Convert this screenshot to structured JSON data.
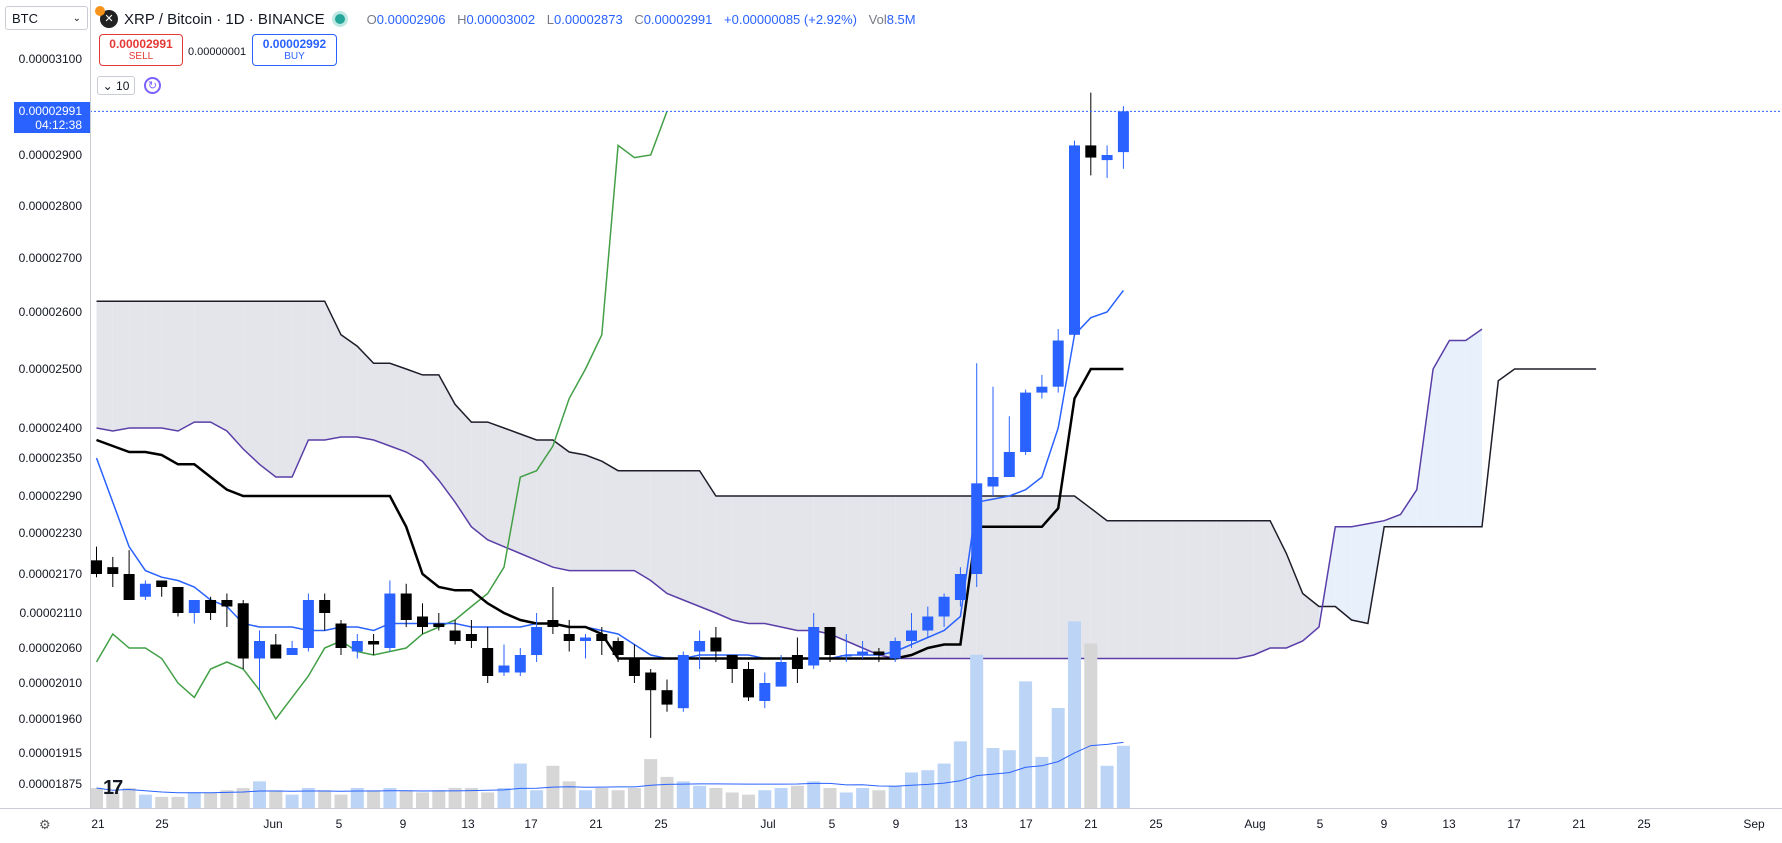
{
  "symbol_select": {
    "value": "BTC"
  },
  "legend": {
    "title": "XRP / Bitcoin · 1D · BINANCE",
    "open_k": "O",
    "open": "0.00002906",
    "high_k": "H",
    "high": "0.00003002",
    "low_k": "L",
    "low": "0.00002873",
    "close_k": "C",
    "close": "0.00002991",
    "change": "+0.00000085 (+2.92%)",
    "vol_k": "Vol",
    "vol": "8.5M"
  },
  "trade": {
    "sell_price": "0.00002991",
    "sell_label": "SELL",
    "spread": "0.00000001",
    "buy_price": "0.00002992",
    "buy_label": "BUY"
  },
  "interval": {
    "value": "10"
  },
  "price_tag": {
    "price": "0.00002991",
    "countdown": "04:12:38"
  },
  "colors": {
    "up": "#2962ff",
    "down": "#000000",
    "tenkan": "#2962ff",
    "kijun": "#000000",
    "chikou": "#43a047",
    "senkou_a": "#5a3fa8",
    "senkou_b": "#1e1e2a",
    "cloud_bear": "#e4e5ea",
    "cloud_bull": "#e8f0fb",
    "vol_up": "#bcd5f7",
    "vol_down": "#d6d6d6"
  },
  "chart_data": {
    "type": "candlestick",
    "y_axis_labels": [
      "0.00003100",
      "0.00002900",
      "0.00002800",
      "0.00002700",
      "0.00002600",
      "0.00002500",
      "0.00002400",
      "0.00002350",
      "0.00002290",
      "0.00002230",
      "0.00002170",
      "0.00002110",
      "0.00002060",
      "0.00002010",
      "0.00001960",
      "0.00001915",
      "0.00001875"
    ],
    "x_axis_labels": [
      "21",
      "25",
      "Jun",
      "5",
      "9",
      "13",
      "17",
      "21",
      "25",
      "Jul",
      "5",
      "9",
      "13",
      "17",
      "21",
      "25",
      "Aug",
      "5",
      "9",
      "13",
      "17",
      "21",
      "25",
      "Sep"
    ],
    "ohlc": [
      [
        2.19e-05,
        2.21e-05,
        2.165e-05,
        2.17e-05
      ],
      [
        2.18e-05,
        2.195e-05,
        2.15e-05,
        2.17e-05
      ],
      [
        2.17e-05,
        2.205e-05,
        2.13e-05,
        2.13e-05
      ],
      [
        2.135e-05,
        2.16e-05,
        2.13e-05,
        2.155e-05
      ],
      [
        2.16e-05,
        2.16e-05,
        2.135e-05,
        2.15e-05
      ],
      [
        2.15e-05,
        2.15e-05,
        2.105e-05,
        2.11e-05
      ],
      [
        2.11e-05,
        2.13e-05,
        2.095e-05,
        2.13e-05
      ],
      [
        2.13e-05,
        2.135e-05,
        2.1e-05,
        2.11e-05
      ],
      [
        2.13e-05,
        2.14e-05,
        2.09e-05,
        2.12e-05
      ],
      [
        2.125e-05,
        2.13e-05,
        2.03e-05,
        2.045e-05
      ],
      [
        2.045e-05,
        2.085e-05,
        2e-05,
        2.07e-05
      ],
      [
        2.065e-05,
        2.08e-05,
        2.045e-05,
        2.045e-05
      ],
      [
        2.05e-05,
        2.07e-05,
        2.05e-05,
        2.06e-05
      ],
      [
        2.06e-05,
        2.14e-05,
        2.055e-05,
        2.13e-05
      ],
      [
        2.13e-05,
        2.14e-05,
        2.085e-05,
        2.11e-05
      ],
      [
        2.095e-05,
        2.1e-05,
        2.05e-05,
        2.06e-05
      ],
      [
        2.055e-05,
        2.08e-05,
        2.045e-05,
        2.07e-05
      ],
      [
        2.07e-05,
        2.08e-05,
        2.05e-05,
        2.065e-05
      ],
      [
        2.06e-05,
        2.16e-05,
        2.055e-05,
        2.14e-05
      ],
      [
        2.14e-05,
        2.155e-05,
        2.09e-05,
        2.1e-05
      ],
      [
        2.105e-05,
        2.125e-05,
        2.08e-05,
        2.09e-05
      ],
      [
        2.095e-05,
        2.11e-05,
        2.085e-05,
        2.09e-05
      ],
      [
        2.085e-05,
        2.1e-05,
        2.065e-05,
        2.07e-05
      ],
      [
        2.08e-05,
        2.1e-05,
        2.06e-05,
        2.07e-05
      ],
      [
        2.06e-05,
        2.09e-05,
        2.01e-05,
        2.02e-05
      ],
      [
        2.025e-05,
        2.065e-05,
        2.02e-05,
        2.035e-05
      ],
      [
        2.025e-05,
        2.06e-05,
        2.02e-05,
        2.05e-05
      ],
      [
        2.05e-05,
        2.11e-05,
        2.04e-05,
        2.09e-05
      ],
      [
        2.1e-05,
        2.15e-05,
        2.08e-05,
        2.09e-05
      ],
      [
        2.08e-05,
        2.1e-05,
        2.055e-05,
        2.07e-05
      ],
      [
        2.07e-05,
        2.08e-05,
        2.045e-05,
        2.075e-05
      ],
      [
        2.08e-05,
        2.09e-05,
        2.05e-05,
        2.07e-05
      ],
      [
        2.07e-05,
        2.075e-05,
        2.04e-05,
        2.05e-05
      ],
      [
        2.045e-05,
        2.065e-05,
        2.01e-05,
        2.02e-05
      ],
      [
        2.025e-05,
        2.03e-05,
        1.935e-05,
        2e-05
      ],
      [
        2e-05,
        2.015e-05,
        1.97e-05,
        1.98e-05
      ],
      [
        1.975e-05,
        2.055e-05,
        1.97e-05,
        2.05e-05
      ],
      [
        2.055e-05,
        2.085e-05,
        2.03e-05,
        2.07e-05
      ],
      [
        2.075e-05,
        2.09e-05,
        2.04e-05,
        2.055e-05
      ],
      [
        2.05e-05,
        2.05e-05,
        2.01e-05,
        2.03e-05
      ],
      [
        2.03e-05,
        2.04e-05,
        1.985e-05,
        1.99e-05
      ],
      [
        1.985e-05,
        2.025e-05,
        1.975e-05,
        2.01e-05
      ],
      [
        2.005e-05,
        2.05e-05,
        2.005e-05,
        2.04e-05
      ],
      [
        2.05e-05,
        2.075e-05,
        2.01e-05,
        2.03e-05
      ],
      [
        2.035e-05,
        2.11e-05,
        2.03e-05,
        2.09e-05
      ],
      [
        2.09e-05,
        2.09e-05,
        2.04e-05,
        2.05e-05
      ],
      [
        2.05e-05,
        2.08e-05,
        2.04e-05,
        2.05e-05
      ],
      [
        2.05e-05,
        2.07e-05,
        2.045e-05,
        2.055e-05
      ],
      [
        2.055e-05,
        2.06e-05,
        2.04e-05,
        2.05e-05
      ],
      [
        2.045e-05,
        2.075e-05,
        2.04e-05,
        2.07e-05
      ],
      [
        2.07e-05,
        2.11e-05,
        2.06e-05,
        2.085e-05
      ],
      [
        2.085e-05,
        2.12e-05,
        2.075e-05,
        2.105e-05
      ],
      [
        2.105e-05,
        2.14e-05,
        2.09e-05,
        2.135e-05
      ],
      [
        2.13e-05,
        2.18e-05,
        2.12e-05,
        2.17e-05
      ],
      [
        2.17e-05,
        2.51e-05,
        2.15e-05,
        2.31e-05
      ],
      [
        2.305e-05,
        2.47e-05,
        2.29e-05,
        2.32e-05
      ],
      [
        2.32e-05,
        2.42e-05,
        2.32e-05,
        2.36e-05
      ],
      [
        2.36e-05,
        2.465e-05,
        2.355e-05,
        2.46e-05
      ],
      [
        2.46e-05,
        2.49e-05,
        2.45e-05,
        2.47e-05
      ],
      [
        2.47e-05,
        2.57e-05,
        2.46e-05,
        2.55e-05
      ],
      [
        2.56e-05,
        2.93e-05,
        2.56e-05,
        2.92e-05
      ],
      [
        2.92e-05,
        3.03e-05,
        2.86e-05,
        2.895e-05
      ],
      [
        2.89e-05,
        2.92e-05,
        2.855e-05,
        2.9e-05
      ],
      [
        2.906e-05,
        3.002e-05,
        2.873e-05,
        2.991e-05
      ]
    ],
    "volume": [
      9,
      7,
      9,
      6,
      5,
      5,
      7,
      7,
      8,
      9,
      12,
      8,
      6,
      9,
      8,
      6,
      9,
      8,
      9,
      8,
      7,
      8,
      9,
      9,
      7,
      9,
      20,
      8,
      19,
      12,
      8,
      9,
      8,
      9,
      22,
      14,
      12,
      10,
      9,
      7,
      6,
      8,
      9,
      10,
      12,
      9,
      7,
      9,
      8,
      10,
      16,
      17,
      20,
      30,
      69,
      27,
      26,
      57,
      23,
      45,
      84,
      74,
      19,
      28
    ],
    "tenkan": [
      2.35e-05,
      2.28e-05,
      2.21e-05,
      2.175e-05,
      2.165e-05,
      2.16e-05,
      2.15e-05,
      2.13e-05,
      2.12e-05,
      2.095e-05,
      2.09e-05,
      2.09e-05,
      2.09e-05,
      2.085e-05,
      2.085e-05,
      2.09e-05,
      2.09e-05,
      2.085e-05,
      2.095e-05,
      2.095e-05,
      2.095e-05,
      2.095e-05,
      2.095e-05,
      2.09e-05,
      2.09e-05,
      2.09e-05,
      2.09e-05,
      2.095e-05,
      2.095e-05,
      2.09e-05,
      2.09e-05,
      2.085e-05,
      2.08e-05,
      2.065e-05,
      2.05e-05,
      2.045e-05,
      2.045e-05,
      2.05e-05,
      2.05e-05,
      2.05e-05,
      2.05e-05,
      2.045e-05,
      2.045e-05,
      2.045e-05,
      2.045e-05,
      2.045e-05,
      2.05e-05,
      2.05e-05,
      2.05e-05,
      2.055e-05,
      2.065e-05,
      2.075e-05,
      2.085e-05,
      2.105e-05,
      2.28e-05,
      2.285e-05,
      2.29e-05,
      2.3e-05,
      2.32e-05,
      2.4e-05,
      2.56e-05,
      2.59e-05,
      2.6e-05,
      2.64e-05
    ],
    "kijun": [
      2.38e-05,
      2.37e-05,
      2.36e-05,
      2.36e-05,
      2.355e-05,
      2.34e-05,
      2.34e-05,
      2.32e-05,
      2.3e-05,
      2.29e-05,
      2.29e-05,
      2.29e-05,
      2.29e-05,
      2.29e-05,
      2.29e-05,
      2.29e-05,
      2.29e-05,
      2.29e-05,
      2.29e-05,
      2.24e-05,
      2.17e-05,
      2.15e-05,
      2.145e-05,
      2.145e-05,
      2.125e-05,
      2.11e-05,
      2.1e-05,
      2.095e-05,
      2.095e-05,
      2.09e-05,
      2.09e-05,
      2.08e-05,
      2.045e-05,
      2.045e-05,
      2.045e-05,
      2.045e-05,
      2.045e-05,
      2.045e-05,
      2.045e-05,
      2.045e-05,
      2.045e-05,
      2.045e-05,
      2.045e-05,
      2.045e-05,
      2.045e-05,
      2.045e-05,
      2.045e-05,
      2.045e-05,
      2.045e-05,
      2.045e-05,
      2.05e-05,
      2.06e-05,
      2.065e-05,
      2.065e-05,
      2.24e-05,
      2.24e-05,
      2.24e-05,
      2.24e-05,
      2.24e-05,
      2.27e-05,
      2.45e-05,
      2.5e-05,
      2.5e-05,
      2.5e-05
    ],
    "chikou": [
      2.04e-05,
      2.08e-05,
      2.06e-05,
      2.06e-05,
      2.045e-05,
      2.01e-05,
      1.99e-05,
      2.03e-05,
      2.04e-05,
      2.03e-05,
      2e-05,
      1.96e-05,
      1.99e-05,
      2.02e-05,
      2.06e-05,
      2.07e-05,
      2.055e-05,
      2.05e-05,
      2.055e-05,
      2.06e-05,
      2.08e-05,
      2.09e-05,
      2.1e-05,
      2.12e-05,
      2.14e-05,
      2.18e-05,
      2.32e-05,
      2.33e-05,
      2.37e-05,
      2.45e-05,
      2.5e-05,
      2.56e-05,
      2.92e-05,
      2.895e-05,
      2.9e-05,
      2.991e-05
    ],
    "senkou_a": [
      2.4e-05,
      2.395e-05,
      2.4e-05,
      2.4e-05,
      2.4e-05,
      2.395e-05,
      2.41e-05,
      2.41e-05,
      2.395e-05,
      2.365e-05,
      2.34e-05,
      2.32e-05,
      2.32e-05,
      2.38e-05,
      2.38e-05,
      2.385e-05,
      2.385e-05,
      2.38e-05,
      2.37e-05,
      2.36e-05,
      2.345e-05,
      2.315e-05,
      2.28e-05,
      2.24e-05,
      2.22e-05,
      2.21e-05,
      2.2e-05,
      2.19e-05,
      2.18e-05,
      2.175e-05,
      2.175e-05,
      2.175e-05,
      2.175e-05,
      2.175e-05,
      2.16e-05,
      2.14e-05,
      2.13e-05,
      2.12e-05,
      2.11e-05,
      2.1e-05,
      2.095e-05,
      2.095e-05,
      2.09e-05,
      2.085e-05,
      2.085e-05,
      2.08e-05,
      2.07e-05,
      2.06e-05,
      2.05e-05,
      2.045e-05,
      2.045e-05,
      2.045e-05,
      2.045e-05,
      2.045e-05,
      2.045e-05,
      2.045e-05,
      2.045e-05,
      2.045e-05,
      2.045e-05,
      2.045e-05,
      2.045e-05,
      2.045e-05,
      2.045e-05,
      2.045e-05,
      2.045e-05,
      2.045e-05,
      2.045e-05,
      2.045e-05,
      2.045e-05,
      2.045e-05,
      2.045e-05,
      2.05e-05,
      2.06e-05,
      2.06e-05,
      2.07e-05,
      2.09e-05,
      2.24e-05,
      2.24e-05,
      2.245e-05,
      2.25e-05,
      2.26e-05,
      2.3e-05,
      2.5e-05,
      2.55e-05,
      2.55e-05,
      2.57e-05
    ],
    "senkou_b": [
      2.62e-05,
      2.62e-05,
      2.62e-05,
      2.62e-05,
      2.62e-05,
      2.62e-05,
      2.62e-05,
      2.62e-05,
      2.62e-05,
      2.62e-05,
      2.62e-05,
      2.62e-05,
      2.62e-05,
      2.62e-05,
      2.62e-05,
      2.56e-05,
      2.54e-05,
      2.51e-05,
      2.51e-05,
      2.5e-05,
      2.49e-05,
      2.49e-05,
      2.44e-05,
      2.41e-05,
      2.41e-05,
      2.4e-05,
      2.39e-05,
      2.38e-05,
      2.38e-05,
      2.36e-05,
      2.355e-05,
      2.345e-05,
      2.33e-05,
      2.33e-05,
      2.33e-05,
      2.33e-05,
      2.33e-05,
      2.33e-05,
      2.29e-05,
      2.29e-05,
      2.29e-05,
      2.29e-05,
      2.29e-05,
      2.29e-05,
      2.29e-05,
      2.29e-05,
      2.29e-05,
      2.29e-05,
      2.29e-05,
      2.29e-05,
      2.29e-05,
      2.29e-05,
      2.29e-05,
      2.29e-05,
      2.29e-05,
      2.29e-05,
      2.29e-05,
      2.29e-05,
      2.29e-05,
      2.29e-05,
      2.29e-05,
      2.27e-05,
      2.25e-05,
      2.25e-05,
      2.25e-05,
      2.25e-05,
      2.25e-05,
      2.25e-05,
      2.25e-05,
      2.25e-05,
      2.25e-05,
      2.25e-05,
      2.25e-05,
      2.2e-05,
      2.14e-05,
      2.12e-05,
      2.12e-05,
      2.1e-05,
      2.095e-05,
      2.24e-05,
      2.24e-05,
      2.24e-05,
      2.24e-05,
      2.24e-05,
      2.24e-05,
      2.24e-05,
      2.48e-05,
      2.5e-05,
      2.5e-05,
      2.5e-05,
      2.5e-05,
      2.5e-05,
      2.5e-05
    ]
  }
}
